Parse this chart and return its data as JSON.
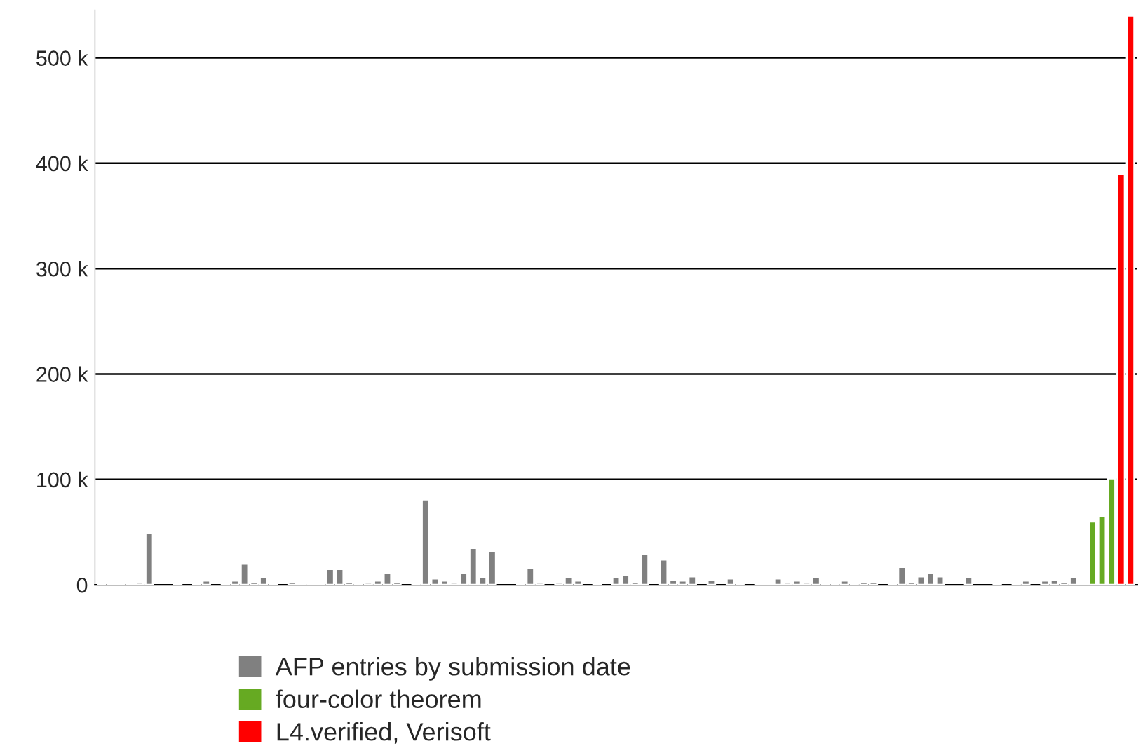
{
  "chart_data": {
    "type": "bar",
    "categories": [
      null,
      null,
      null,
      null,
      null,
      null,
      null,
      null,
      null,
      null,
      null,
      null,
      null,
      null,
      null,
      null,
      null,
      null,
      null,
      null,
      null,
      null,
      null,
      null,
      null,
      null,
      null,
      null,
      null,
      null,
      null,
      null,
      null,
      null,
      null,
      null,
      null,
      null,
      null,
      null,
      null,
      null,
      null,
      null,
      null,
      null,
      null,
      null,
      null,
      null,
      null,
      null,
      null,
      null,
      null,
      null,
      null,
      null,
      null,
      null,
      null,
      null,
      null,
      null,
      null,
      null,
      null,
      null,
      null,
      null,
      null,
      null,
      null,
      null,
      null,
      null,
      null,
      null,
      null,
      null,
      null,
      null,
      null,
      null,
      null,
      null,
      null,
      null,
      null,
      null,
      null,
      null,
      null,
      null,
      null,
      null,
      null,
      null,
      null,
      null,
      null,
      null,
      null,
      null,
      null,
      null,
      null,
      null,
      null
    ],
    "series": [
      {
        "name": "AFP entries by submission date",
        "color": "#808080",
        "values": [
          1000,
          1000,
          1000,
          1000,
          2000,
          49000,
          null,
          null,
          1000,
          null,
          1000,
          4000,
          null,
          1000,
          4000,
          20000,
          3000,
          7000,
          1000,
          null,
          3000,
          1000,
          1000,
          1000,
          15000,
          15000,
          3000,
          1000,
          2000,
          4000,
          11000,
          3000,
          null,
          1000,
          81000,
          6000,
          4000,
          2000,
          11000,
          35000,
          7000,
          32000,
          null,
          null,
          1000,
          16000,
          2000,
          null,
          2000,
          7000,
          4000,
          null,
          1000,
          null,
          7000,
          9000,
          3000,
          29000,
          null,
          24000,
          5000,
          4000,
          8000,
          null,
          5000,
          null,
          6000,
          1000,
          null,
          1000,
          1000,
          6000,
          2000,
          4000,
          2000,
          7000,
          1000,
          1000,
          4000,
          1000,
          3000,
          3000,
          null,
          1000,
          17000,
          3000,
          8000,
          11000,
          8000,
          null,
          null,
          7000,
          null,
          null,
          1000,
          null,
          1000,
          4000,
          null,
          4000,
          5000,
          3000,
          7000,
          1000,
          null,
          null,
          null,
          null,
          null
        ]
      },
      {
        "name": "four-color theorem",
        "color": "#66aa22",
        "values": [
          null,
          null,
          null,
          null,
          null,
          null,
          null,
          null,
          null,
          null,
          null,
          null,
          null,
          null,
          null,
          null,
          null,
          null,
          null,
          null,
          null,
          null,
          null,
          null,
          null,
          null,
          null,
          null,
          null,
          null,
          null,
          null,
          null,
          null,
          null,
          null,
          null,
          null,
          null,
          null,
          null,
          null,
          null,
          null,
          null,
          null,
          null,
          null,
          null,
          null,
          null,
          null,
          null,
          null,
          null,
          null,
          null,
          null,
          null,
          null,
          null,
          null,
          null,
          null,
          null,
          null,
          null,
          null,
          null,
          null,
          null,
          null,
          null,
          null,
          null,
          null,
          null,
          null,
          null,
          null,
          null,
          null,
          null,
          null,
          null,
          null,
          null,
          null,
          null,
          null,
          null,
          null,
          null,
          null,
          null,
          null,
          null,
          null,
          null,
          null,
          null,
          null,
          null,
          null,
          60000,
          65000,
          101000,
          null,
          null
        ]
      },
      {
        "name": "L4.verified, Verisoft",
        "color": "#ff0000",
        "values": [
          null,
          null,
          null,
          null,
          null,
          null,
          null,
          null,
          null,
          null,
          null,
          null,
          null,
          null,
          null,
          null,
          null,
          null,
          null,
          null,
          null,
          null,
          null,
          null,
          null,
          null,
          null,
          null,
          null,
          null,
          null,
          null,
          null,
          null,
          null,
          null,
          null,
          null,
          null,
          null,
          null,
          null,
          null,
          null,
          null,
          null,
          null,
          null,
          null,
          null,
          null,
          null,
          null,
          null,
          null,
          null,
          null,
          null,
          null,
          null,
          null,
          null,
          null,
          null,
          null,
          null,
          null,
          null,
          null,
          null,
          null,
          null,
          null,
          null,
          null,
          null,
          null,
          null,
          null,
          null,
          null,
          null,
          null,
          null,
          null,
          null,
          null,
          null,
          null,
          null,
          null,
          null,
          null,
          null,
          null,
          null,
          null,
          null,
          null,
          null,
          null,
          null,
          null,
          null,
          null,
          null,
          null,
          390000,
          540000
        ]
      }
    ],
    "ylim": [
      0,
      545000
    ],
    "yticks": [
      0,
      {
        "value": 100000,
        "label": "100 k"
      },
      {
        "value": 200000,
        "label": "200 k"
      },
      {
        "value": 300000,
        "label": "300 k"
      },
      {
        "value": 400000,
        "label": "400 k"
      },
      {
        "value": 500000,
        "label": "500 k"
      }
    ],
    "grid": "y",
    "legend": "bottom",
    "tick_labels": "y"
  }
}
